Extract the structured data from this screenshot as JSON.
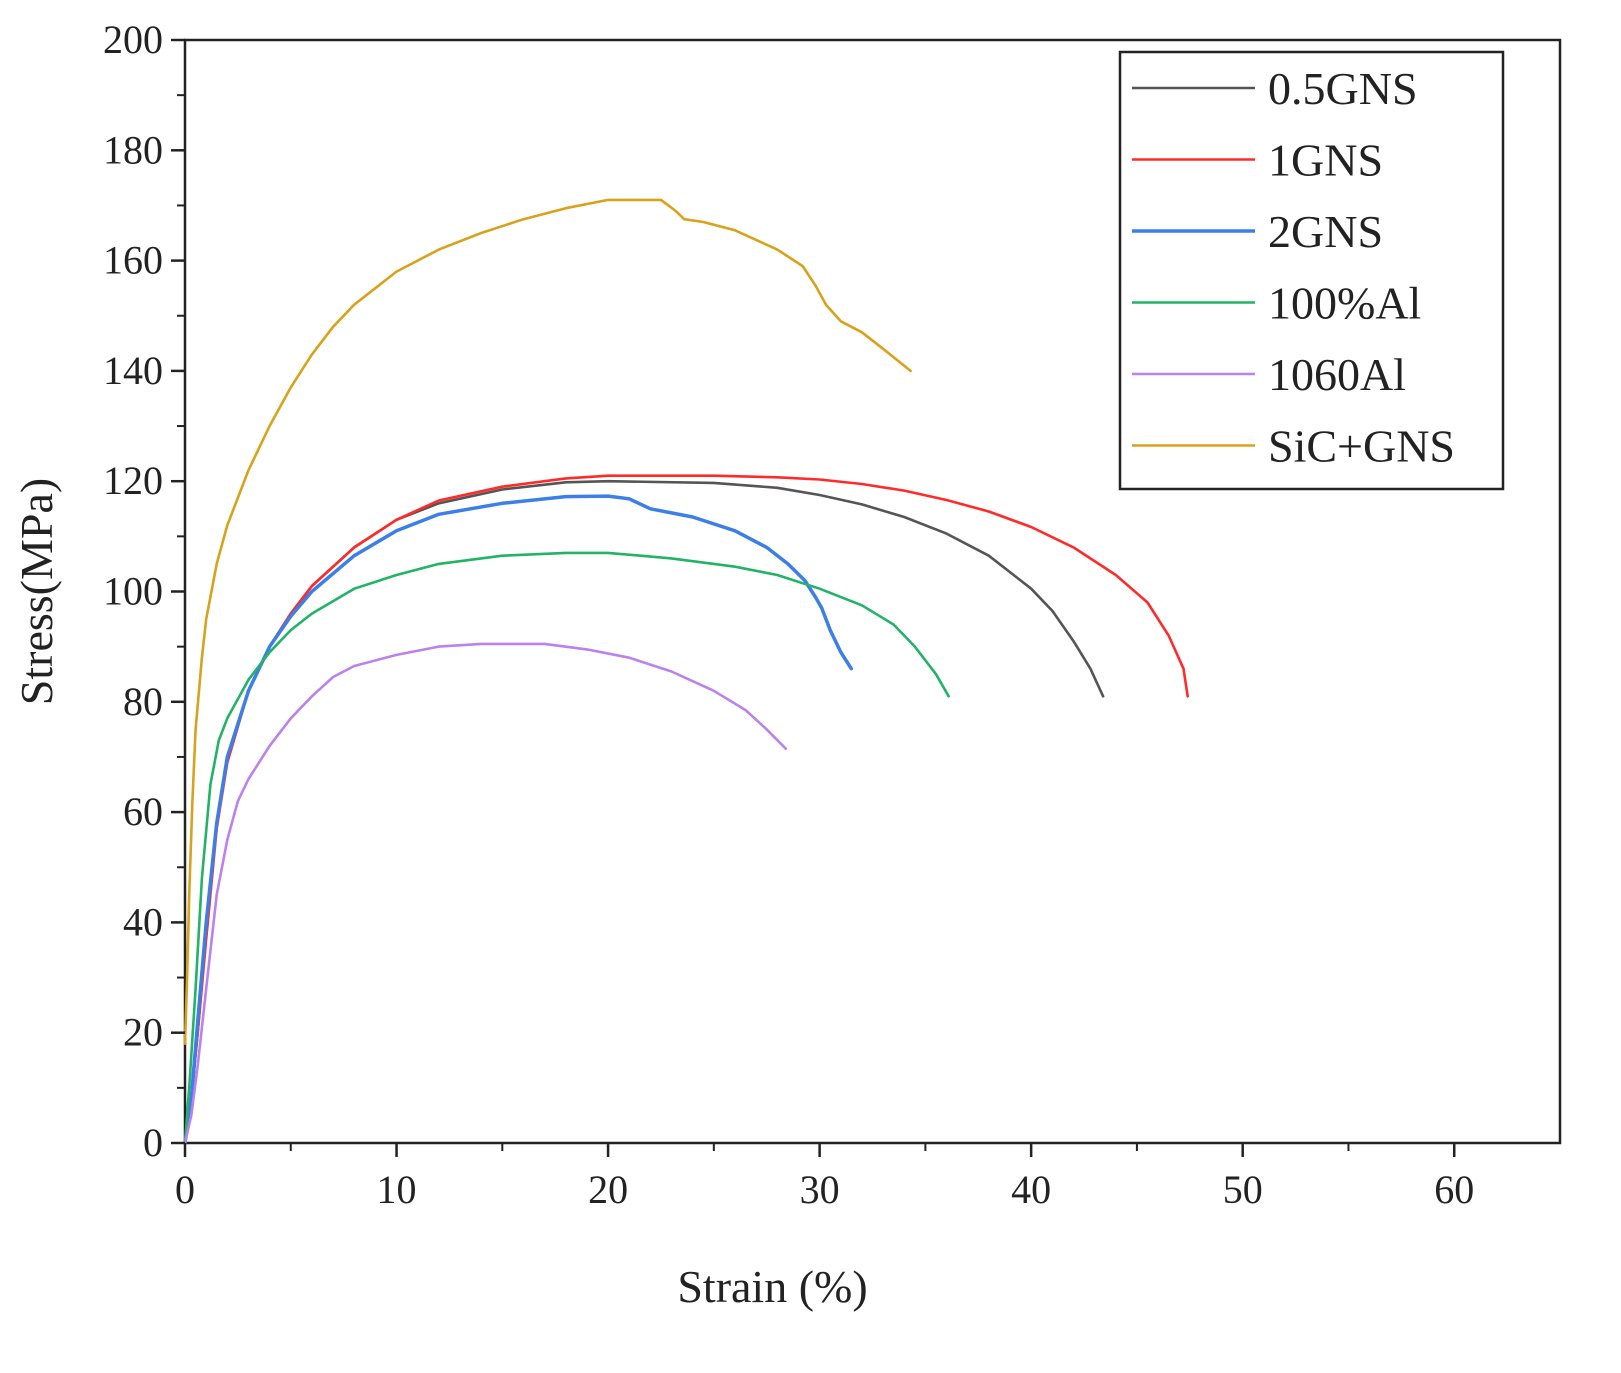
{
  "chart_data": {
    "type": "line",
    "title": "",
    "xlabel": "Strain (%)",
    "ylabel": "Stress(MPa)",
    "xlim": [
      0,
      65
    ],
    "ylim": [
      0,
      200
    ],
    "xticks": [
      0,
      10,
      20,
      30,
      40,
      50,
      60
    ],
    "yticks": [
      0,
      20,
      40,
      60,
      80,
      100,
      120,
      140,
      160,
      180,
      200
    ],
    "grid": false,
    "legend_position": "top-right",
    "series": [
      {
        "name": "0.5GNS",
        "color": "#555555",
        "points": [
          [
            0,
            0
          ],
          [
            0.3,
            8
          ],
          [
            0.6,
            20
          ],
          [
            1,
            38
          ],
          [
            1.5,
            58
          ],
          [
            2,
            70
          ],
          [
            3,
            82
          ],
          [
            4,
            90
          ],
          [
            5,
            96
          ],
          [
            6,
            101
          ],
          [
            8,
            108
          ],
          [
            10,
            113
          ],
          [
            12,
            116
          ],
          [
            15,
            118.5
          ],
          [
            18,
            119.8
          ],
          [
            20,
            120
          ],
          [
            25,
            119.7
          ],
          [
            28,
            118.8
          ],
          [
            30,
            117.5
          ],
          [
            32,
            115.8
          ],
          [
            34,
            113.5
          ],
          [
            36,
            110.5
          ],
          [
            38,
            106.5
          ],
          [
            40,
            100.5
          ],
          [
            41,
            96.5
          ],
          [
            42,
            91
          ],
          [
            42.8,
            86
          ],
          [
            43.4,
            81
          ]
        ]
      },
      {
        "name": "1GNS",
        "color": "#ff2a2a",
        "points": [
          [
            0,
            0
          ],
          [
            0.3,
            8
          ],
          [
            0.6,
            20
          ],
          [
            1,
            37
          ],
          [
            1.5,
            57
          ],
          [
            2,
            69
          ],
          [
            3,
            82
          ],
          [
            4,
            90
          ],
          [
            5,
            96
          ],
          [
            6,
            101
          ],
          [
            8,
            108
          ],
          [
            10,
            113
          ],
          [
            12,
            116.5
          ],
          [
            15,
            119
          ],
          [
            18,
            120.5
          ],
          [
            20,
            121
          ],
          [
            25,
            121
          ],
          [
            28,
            120.7
          ],
          [
            30,
            120.3
          ],
          [
            32,
            119.5
          ],
          [
            34,
            118.3
          ],
          [
            36,
            116.6
          ],
          [
            38,
            114.5
          ],
          [
            40,
            111.7
          ],
          [
            42,
            108
          ],
          [
            44,
            103
          ],
          [
            45.5,
            98
          ],
          [
            46.5,
            92
          ],
          [
            47.2,
            86
          ],
          [
            47.4,
            81
          ]
        ]
      },
      {
        "name": "2GNS",
        "color": "#3c7fe6",
        "points": [
          [
            0,
            0
          ],
          [
            0.3,
            8
          ],
          [
            0.6,
            22
          ],
          [
            1,
            40
          ],
          [
            1.5,
            58
          ],
          [
            2,
            70
          ],
          [
            3,
            82
          ],
          [
            4,
            90
          ],
          [
            5,
            95.5
          ],
          [
            6,
            100
          ],
          [
            8,
            106.5
          ],
          [
            10,
            111
          ],
          [
            12,
            114
          ],
          [
            15,
            116
          ],
          [
            18,
            117.2
          ],
          [
            20,
            117.3
          ],
          [
            21,
            116.8
          ],
          [
            22,
            115
          ],
          [
            24,
            113.5
          ],
          [
            26,
            111
          ],
          [
            27.5,
            108
          ],
          [
            28.5,
            105
          ],
          [
            29.3,
            102
          ],
          [
            29.8,
            99
          ],
          [
            30.1,
            97
          ],
          [
            30.5,
            93
          ],
          [
            31,
            89
          ],
          [
            31.5,
            86
          ]
        ]
      },
      {
        "name": "100%Al",
        "color": "#22b366",
        "points": [
          [
            0,
            0
          ],
          [
            0.2,
            10
          ],
          [
            0.5,
            28
          ],
          [
            0.8,
            48
          ],
          [
            1.2,
            65
          ],
          [
            1.6,
            73
          ],
          [
            2,
            77
          ],
          [
            3,
            84
          ],
          [
            4,
            89
          ],
          [
            5,
            93
          ],
          [
            6,
            96
          ],
          [
            8,
            100.5
          ],
          [
            10,
            103
          ],
          [
            12,
            105
          ],
          [
            15,
            106.5
          ],
          [
            18,
            107
          ],
          [
            20,
            107
          ],
          [
            23,
            106
          ],
          [
            26,
            104.5
          ],
          [
            28,
            103
          ],
          [
            30,
            100.5
          ],
          [
            32,
            97.5
          ],
          [
            33.5,
            94
          ],
          [
            34.5,
            90
          ],
          [
            35.5,
            85
          ],
          [
            36.1,
            81
          ]
        ]
      },
      {
        "name": "1060Al",
        "color": "#bb82ee",
        "points": [
          [
            0,
            0
          ],
          [
            0.3,
            5
          ],
          [
            0.6,
            14
          ],
          [
            1,
            28
          ],
          [
            1.5,
            45
          ],
          [
            2,
            55
          ],
          [
            2.5,
            62
          ],
          [
            3,
            66
          ],
          [
            4,
            72
          ],
          [
            5,
            77
          ],
          [
            6,
            81
          ],
          [
            7,
            84.5
          ],
          [
            8,
            86.5
          ],
          [
            10,
            88.5
          ],
          [
            12,
            90
          ],
          [
            14,
            90.5
          ],
          [
            17,
            90.5
          ],
          [
            19,
            89.5
          ],
          [
            21,
            88
          ],
          [
            23,
            85.5
          ],
          [
            25,
            82
          ],
          [
            26.5,
            78.5
          ],
          [
            27.5,
            75
          ],
          [
            28.4,
            71.5
          ]
        ]
      },
      {
        "name": "SiC+GNS",
        "color": "#d9a21b",
        "points": [
          [
            0,
            18
          ],
          [
            0.1,
            30
          ],
          [
            0.2,
            45
          ],
          [
            0.35,
            62
          ],
          [
            0.5,
            75
          ],
          [
            0.8,
            88
          ],
          [
            1,
            95
          ],
          [
            1.5,
            105
          ],
          [
            2,
            112
          ],
          [
            3,
            122
          ],
          [
            4,
            130
          ],
          [
            5,
            137
          ],
          [
            6,
            143
          ],
          [
            7,
            148
          ],
          [
            8,
            152
          ],
          [
            10,
            158
          ],
          [
            12,
            162
          ],
          [
            14,
            165
          ],
          [
            16,
            167.5
          ],
          [
            18,
            169.5
          ],
          [
            20,
            171
          ],
          [
            22.5,
            171
          ],
          [
            23.2,
            169
          ],
          [
            23.6,
            167.5
          ],
          [
            24.5,
            167
          ],
          [
            26,
            165.5
          ],
          [
            28,
            162
          ],
          [
            29.2,
            159
          ],
          [
            29.8,
            155.5
          ],
          [
            30.3,
            152
          ],
          [
            31,
            149
          ],
          [
            32,
            147
          ],
          [
            33,
            144
          ],
          [
            34.3,
            140
          ]
        ]
      }
    ]
  }
}
